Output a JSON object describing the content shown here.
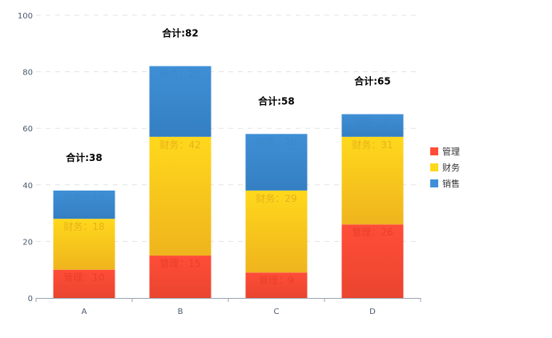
{
  "chart_data": {
    "type": "bar",
    "stacked": true,
    "categories": [
      "A",
      "B",
      "C",
      "D"
    ],
    "series": [
      {
        "name": "管理",
        "values": [
          10,
          15,
          9,
          26
        ],
        "label_color": "#e8402a",
        "color_top": "#ff4d38",
        "color_bottom": "#e9452f"
      },
      {
        "name": "财务",
        "values": [
          18,
          42,
          29,
          31
        ],
        "label_color": "#e6b21a",
        "color_top": "#ffd81c",
        "color_bottom": "#efb41d"
      },
      {
        "name": "销售",
        "values": [
          10,
          25,
          20,
          8
        ],
        "label_color": "#3b87c9",
        "color_top": "#3f8fd6",
        "color_bottom": "#347fc2"
      }
    ],
    "label_separator": "：",
    "totals_prefix": "合计:",
    "totals": [
      38,
      82,
      58,
      65
    ],
    "ylim": [
      0,
      100
    ],
    "yticks": [
      0,
      20,
      40,
      60,
      80,
      100
    ],
    "grid": true,
    "legend_position": "right",
    "title": "",
    "xlabel": "",
    "ylabel": ""
  }
}
